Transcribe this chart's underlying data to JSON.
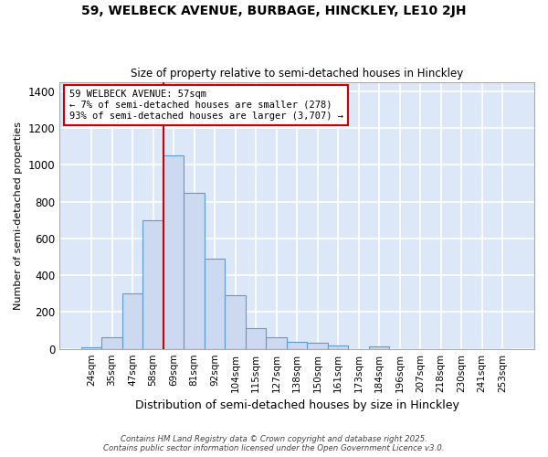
{
  "title1": "59, WELBECK AVENUE, BURBAGE, HINCKLEY, LE10 2JH",
  "title2": "Size of property relative to semi-detached houses in Hinckley",
  "xlabel": "Distribution of semi-detached houses by size in Hinckley",
  "ylabel": "Number of semi-detached properties",
  "categories": [
    "24sqm",
    "35sqm",
    "47sqm",
    "58sqm",
    "69sqm",
    "81sqm",
    "92sqm",
    "104sqm",
    "115sqm",
    "127sqm",
    "138sqm",
    "150sqm",
    "161sqm",
    "173sqm",
    "184sqm",
    "196sqm",
    "207sqm",
    "218sqm",
    "230sqm",
    "241sqm",
    "253sqm"
  ],
  "values": [
    10,
    62,
    300,
    700,
    1050,
    845,
    490,
    290,
    115,
    65,
    40,
    35,
    18,
    0,
    15,
    0,
    0,
    0,
    0,
    0,
    0
  ],
  "bar_color": "#ccd9f0",
  "bar_edge_color": "#5b9bd5",
  "vline_x": 3.5,
  "vline_color": "#cc0000",
  "annotation_text": "59 WELBECK AVENUE: 57sqm\n← 7% of semi-detached houses are smaller (278)\n93% of semi-detached houses are larger (3,707) →",
  "annotation_box_color": "white",
  "annotation_box_edge": "#cc0000",
  "plot_bg_color": "#dce8f8",
  "fig_bg_color": "#ffffff",
  "grid_color": "white",
  "ylim": [
    0,
    1450
  ],
  "yticks": [
    0,
    200,
    400,
    600,
    800,
    1000,
    1200,
    1400
  ],
  "footer1": "Contains HM Land Registry data © Crown copyright and database right 2025.",
  "footer2": "Contains public sector information licensed under the Open Government Licence v3.0."
}
